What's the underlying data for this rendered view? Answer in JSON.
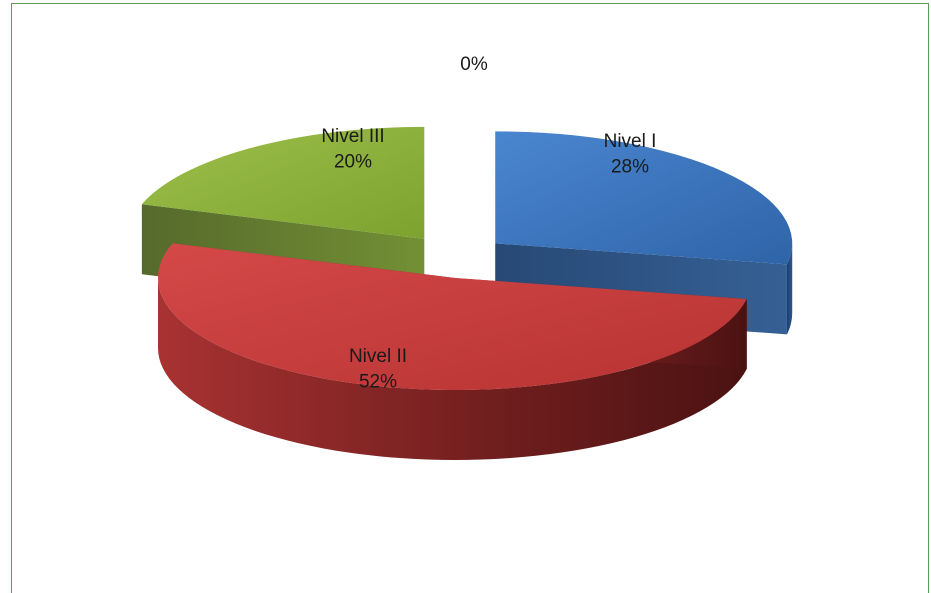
{
  "chart_data": {
    "type": "pie",
    "title": "",
    "categories": [
      "Nivel I",
      "Nivel II",
      "Nivel III",
      ""
    ],
    "values": [
      28,
      52,
      20,
      0
    ],
    "labels": [
      "Nivel I\n28%",
      "Nivel II\n52%",
      "Nivel III\n20%",
      "0%"
    ],
    "colors": [
      "#3b70b8",
      "#c0393a",
      "#8db03a",
      "#7a5aa8"
    ],
    "legend": "none",
    "style": "3d-exploded"
  }
}
